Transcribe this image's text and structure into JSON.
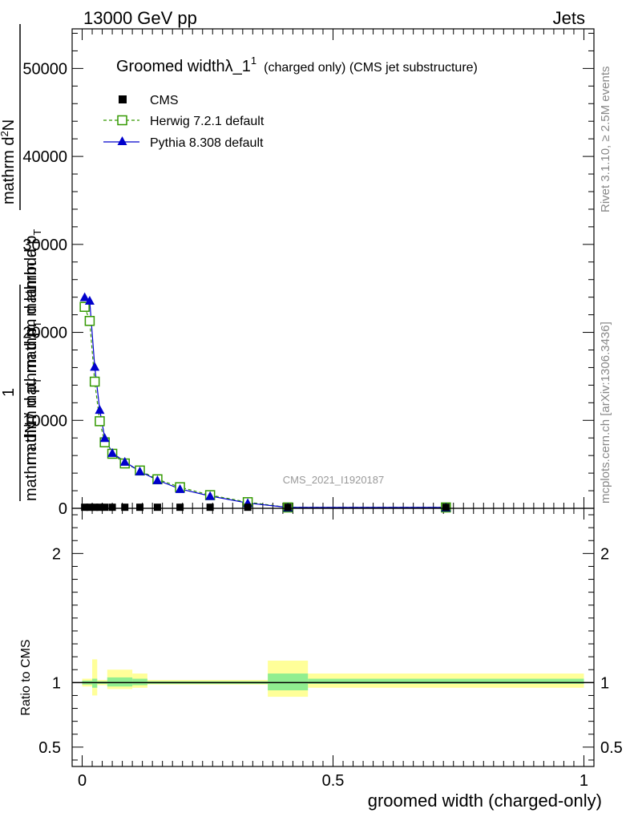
{
  "header": {
    "left": "13000 GeV pp",
    "right": "Jets"
  },
  "side_labels": {
    "rivet": "Rivet 3.1.10, ≥ 2.5M events",
    "mcplots": "mcplots.cern.ch [arXiv:1306.3436]"
  },
  "plot_title": {
    "main": "Groomed widthλ_1",
    "superscript": "1",
    "suffix": "(charged only) (CMS jet substructure)"
  },
  "watermark": "CMS_2021_I1920187",
  "main_ylabel": {
    "line1": "mathrm d",
    "line1_sup": "2",
    "line1_end": "N",
    "line2": "mathrm d p",
    "line2_sub": "T",
    "line2_end": " mathrm d lambda",
    "line3": "1",
    "line4": "mathrm dN / mathrm d p",
    "line4_sub": "T",
    "line4_end": " mathrm d p",
    "line4_sub2": "T"
  },
  "ratio_ylabel": "Ratio to CMS",
  "xlabel": "groomed width (charged-only)",
  "legend": [
    {
      "name": "CMS",
      "color": "#000000",
      "marker": "square-filled"
    },
    {
      "name": "Herwig 7.2.1 default",
      "color": "#339900",
      "marker": "square-open"
    },
    {
      "name": "Pythia 8.308 default",
      "color": "#0000cc",
      "marker": "triangle-filled"
    }
  ],
  "chart_data": {
    "type": "line",
    "xlim": [
      -0.02,
      1.02
    ],
    "main_ylim": [
      0,
      54500
    ],
    "main_yticks": [
      0,
      10000,
      20000,
      30000,
      40000,
      50000
    ],
    "main_yticklabels": [
      "0",
      "10000",
      "20000",
      "30000",
      "40000",
      "50000"
    ],
    "ratio_ylim": [
      0.35,
      2.35
    ],
    "ratio_yticks": [
      0.5,
      1,
      2
    ],
    "ratio_yticklabels": [
      "0.5",
      "1",
      "2"
    ],
    "xticks": [
      0,
      0.5,
      1
    ],
    "xticklabels": [
      "0",
      "0.5",
      "1"
    ],
    "bins": [
      [
        0.0,
        0.01
      ],
      [
        0.01,
        0.02
      ],
      [
        0.02,
        0.03
      ],
      [
        0.03,
        0.04
      ],
      [
        0.04,
        0.05
      ],
      [
        0.05,
        0.07
      ],
      [
        0.07,
        0.1
      ],
      [
        0.1,
        0.13
      ],
      [
        0.13,
        0.17
      ],
      [
        0.17,
        0.22
      ],
      [
        0.22,
        0.29
      ],
      [
        0.29,
        0.37
      ],
      [
        0.37,
        0.45
      ],
      [
        0.45,
        1.0
      ]
    ],
    "series": [
      {
        "name": "CMS",
        "x": [
          0.005,
          0.015,
          0.025,
          0.035,
          0.045,
          0.06,
          0.085,
          0.115,
          0.15,
          0.195,
          0.255,
          0.33,
          0.41,
          0.725
        ],
        "values": [
          120,
          120,
          120,
          120,
          120,
          120,
          120,
          120,
          120,
          120,
          120,
          120,
          120,
          120
        ]
      },
      {
        "name": "Herwig 7.2.1 default",
        "x": [
          0.005,
          0.015,
          0.025,
          0.035,
          0.045,
          0.06,
          0.085,
          0.115,
          0.15,
          0.195,
          0.255,
          0.33,
          0.41,
          0.725
        ],
        "values": [
          22900,
          21300,
          14400,
          9900,
          7500,
          6200,
          5100,
          4300,
          3300,
          2400,
          1500,
          700,
          100,
          100
        ]
      },
      {
        "name": "Pythia 8.308 default",
        "x": [
          0.005,
          0.015,
          0.025,
          0.035,
          0.045,
          0.06,
          0.085,
          0.115,
          0.15,
          0.195,
          0.255,
          0.33,
          0.41,
          0.725
        ],
        "values": [
          24000,
          23600,
          16100,
          11200,
          8000,
          6300,
          5300,
          4200,
          3200,
          2200,
          1400,
          600,
          100,
          100
        ]
      }
    ],
    "ratio_bands": {
      "inner_color": "#90ee90",
      "outer_color": "#ffff99",
      "segments": [
        {
          "x0": 0.0,
          "x1": 0.02,
          "inner": [
            0.985,
            1.015
          ],
          "outer": [
            0.97,
            1.03
          ]
        },
        {
          "x0": 0.02,
          "x1": 0.03,
          "inner": [
            0.96,
            1.03
          ],
          "outer": [
            0.9,
            1.18
          ]
        },
        {
          "x0": 0.03,
          "x1": 0.05,
          "inner": [
            0.99,
            1.01
          ],
          "outer": [
            0.98,
            1.02
          ]
        },
        {
          "x0": 0.05,
          "x1": 0.1,
          "inner": [
            0.97,
            1.04
          ],
          "outer": [
            0.95,
            1.1
          ]
        },
        {
          "x0": 0.1,
          "x1": 0.13,
          "inner": [
            0.98,
            1.03
          ],
          "outer": [
            0.96,
            1.07
          ]
        },
        {
          "x0": 0.13,
          "x1": 0.37,
          "inner": [
            0.99,
            1.01
          ],
          "outer": [
            0.985,
            1.02
          ]
        },
        {
          "x0": 0.37,
          "x1": 0.45,
          "inner": [
            0.94,
            1.07
          ],
          "outer": [
            0.89,
            1.17
          ]
        },
        {
          "x0": 0.45,
          "x1": 1.0,
          "inner": [
            0.99,
            1.03
          ],
          "outer": [
            0.96,
            1.07
          ]
        }
      ]
    },
    "ratio_line": 1
  }
}
